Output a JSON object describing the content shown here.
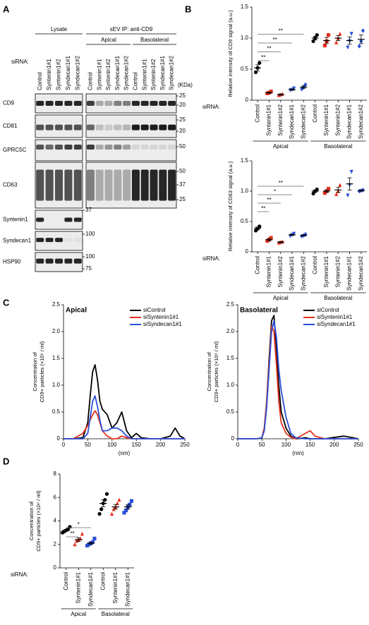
{
  "panel_labels": [
    "A",
    "B",
    "C",
    "D"
  ],
  "blot": {
    "header": {
      "lysate": "Lysate",
      "ip": "sEV IP: anti-CD9",
      "apical": "Apical",
      "basolateral": "Basolateral"
    },
    "sirna_label": "siRNA:",
    "unit": "(KDa)",
    "lanes": {
      "lysate": [
        "Control",
        "Syntenin1#1",
        "Syntenin1#2",
        "Syndecan1#1",
        "Syndecan1#2"
      ],
      "apical": [
        "Control",
        "Syntenin1#1",
        "Syntenin1#2",
        "Syndecan1#1",
        "Syndecan1#2"
      ],
      "basolateral": [
        "Control",
        "Syntenin1#1",
        "Syntenin1#2",
        "Syndecan1#1",
        "Syndecan1#2"
      ]
    },
    "rows": [
      {
        "label": "CD9",
        "markers": [
          25,
          20
        ]
      },
      {
        "label": "CD81",
        "markers": [
          25,
          20
        ]
      },
      {
        "label": "GPRC5C",
        "markers": [
          50
        ]
      },
      {
        "label": "CD63",
        "markers": [
          50,
          37,
          25
        ]
      },
      {
        "label": "Syntenin1",
        "markers": [
          37
        ]
      },
      {
        "label": "Syndecan1",
        "markers": [
          100
        ]
      },
      {
        "label": "HSP90",
        "markers": [
          100,
          75
        ]
      }
    ]
  },
  "chart_data": [
    {
      "type": "dot",
      "ylabel": "Relative intensity of CD9 signal (a.u.)",
      "row_label": "siRNA:",
      "ylim": [
        0,
        1.5
      ],
      "yticks": [
        0,
        0.5,
        {
          "value": 1,
          "label": "1.0"
        },
        1.5
      ],
      "sections": [
        {
          "name": "Apical",
          "groups": [
            {
              "name": "Control",
              "color": "#000000",
              "marker": "circle",
              "points": [
                0.45,
                0.52,
                0.6
              ],
              "mean": 0.52,
              "sem": 0.05
            },
            {
              "name": "Syntenin1#1",
              "color": "#e8301c",
              "marker": "square",
              "points": [
                0.11,
                0.12,
                0.14
              ],
              "mean": 0.12,
              "sem": 0.01,
              "sig": "**"
            },
            {
              "name": "Syntenin1#2",
              "color": "#e8301c",
              "marker": "triangle",
              "points": [
                0.08,
                0.09,
                0.1
              ],
              "mean": 0.09,
              "sem": 0.01,
              "sig": "**"
            },
            {
              "name": "Syndecan1#1",
              "color": "#2a4fd6",
              "marker": "tridown",
              "points": [
                0.16,
                0.17,
                0.19
              ],
              "mean": 0.17,
              "sem": 0.01,
              "sig": "**"
            },
            {
              "name": "Syndecan1#2",
              "color": "#2a4fd6",
              "marker": "diamond",
              "points": [
                0.18,
                0.21,
                0.25
              ],
              "mean": 0.21,
              "sem": 0.02,
              "sig": "**"
            }
          ]
        },
        {
          "name": "Basolateral",
          "groups": [
            {
              "name": "Control",
              "color": "#000000",
              "marker": "circle",
              "points": [
                0.95,
                1.0,
                1.05
              ],
              "mean": 1.0,
              "sem": 0.03
            },
            {
              "name": "Syntenin1#1",
              "color": "#e8301c",
              "marker": "square",
              "points": [
                0.88,
                0.95,
                1.05
              ],
              "mean": 0.96,
              "sem": 0.05
            },
            {
              "name": "Syntenin1#2",
              "color": "#e8301c",
              "marker": "triangle",
              "points": [
                0.93,
                1.0,
                1.07
              ],
              "mean": 1.0,
              "sem": 0.04
            },
            {
              "name": "Syndecan1#1",
              "color": "#2a4fd6",
              "marker": "tridown",
              "points": [
                0.85,
                0.95,
                1.07
              ],
              "mean": 0.96,
              "sem": 0.06
            },
            {
              "name": "Syndecan1#2",
              "color": "#2a4fd6",
              "marker": "diamond",
              "points": [
                0.87,
                0.95,
                1.12
              ],
              "mean": 0.98,
              "sem": 0.07
            }
          ]
        }
      ]
    },
    {
      "type": "dot",
      "ylabel": "Relative intensity of CD63 signal (a.u.)",
      "row_label": "siRNA:",
      "ylim": [
        0,
        1.5
      ],
      "yticks": [
        0,
        0.5,
        {
          "value": 1,
          "label": "1.0"
        },
        1.5
      ],
      "sections": [
        {
          "name": "Apical",
          "groups": [
            {
              "name": "Control",
              "color": "#000000",
              "marker": "circle",
              "points": [
                0.35,
                0.38,
                0.42
              ],
              "mean": 0.39,
              "sem": 0.02
            },
            {
              "name": "Syntenin1#1",
              "color": "#e8301c",
              "marker": "square",
              "points": [
                0.18,
                0.2,
                0.23
              ],
              "mean": 0.2,
              "sem": 0.02,
              "sig": "**"
            },
            {
              "name": "Syntenin1#2",
              "color": "#e8301c",
              "marker": "triangle",
              "points": [
                0.15,
                0.16,
                0.17
              ],
              "mean": 0.16,
              "sem": 0.01,
              "sig": "**"
            },
            {
              "name": "Syndecan1#1",
              "color": "#2a4fd6",
              "marker": "tridown",
              "points": [
                0.26,
                0.28,
                0.3
              ],
              "mean": 0.28,
              "sem": 0.01,
              "sig": "*"
            },
            {
              "name": "Syndecan1#2",
              "color": "#2a4fd6",
              "marker": "diamond",
              "points": [
                0.26,
                0.27,
                0.29
              ],
              "mean": 0.27,
              "sem": 0.01,
              "sig": "**"
            }
          ]
        },
        {
          "name": "Basolateral",
          "groups": [
            {
              "name": "Control",
              "color": "#000000",
              "marker": "circle",
              "points": [
                0.96,
                1.0,
                1.03
              ],
              "mean": 1.0,
              "sem": 0.02
            },
            {
              "name": "Syntenin1#1",
              "color": "#e8301c",
              "marker": "square",
              "points": [
                0.97,
                1.0,
                1.04
              ],
              "mean": 1.0,
              "sem": 0.02
            },
            {
              "name": "Syntenin1#2",
              "color": "#e8301c",
              "marker": "triangle",
              "points": [
                0.95,
                1.0,
                1.1
              ],
              "mean": 1.02,
              "sem": 0.04
            },
            {
              "name": "Syndecan1#1",
              "color": "#2a4fd6",
              "marker": "tridown",
              "points": [
                0.93,
                1.1,
                1.32
              ],
              "mean": 1.12,
              "sem": 0.1
            },
            {
              "name": "Syndecan1#2",
              "color": "#2a4fd6",
              "marker": "diamond",
              "points": [
                1.0,
                1.01,
                1.02
              ],
              "mean": 1.01,
              "sem": 0.01
            }
          ]
        }
      ]
    },
    {
      "type": "line",
      "title": "Apical",
      "xlabel": "(nm)",
      "ylabel": [
        "Concentration of",
        "CD9+ particles (×10⁸ / ml)"
      ],
      "legend": "upper right",
      "x": [
        0,
        20,
        40,
        50,
        55,
        60,
        65,
        70,
        75,
        80,
        90,
        100,
        110,
        120,
        130,
        140,
        150,
        160,
        180,
        200,
        220,
        230,
        240,
        250
      ],
      "xlim": [
        0,
        250
      ],
      "xticks": [
        0,
        50,
        100,
        150,
        200,
        250
      ],
      "ylim": [
        0,
        2.5
      ],
      "yticks": [
        0,
        0.5,
        {
          "value": 1,
          "label": "1.0"
        },
        1.5,
        {
          "value": 2,
          "label": "2.0"
        },
        2.5
      ],
      "series": [
        {
          "name": "siControl",
          "color": "#000000",
          "values": [
            0,
            0,
            0.02,
            0.3,
            0.8,
            1.25,
            1.38,
            1.1,
            0.7,
            0.55,
            0.45,
            0.2,
            0.3,
            0.5,
            0.15,
            0.02,
            0.1,
            0.02,
            0,
            0,
            0.05,
            0.2,
            0.05,
            0
          ]
        },
        {
          "name": "siSyntenin1#1",
          "color": "#e8301c",
          "values": [
            0,
            0,
            0.1,
            0.25,
            0.35,
            0.45,
            0.52,
            0.45,
            0.3,
            0.15,
            0.05,
            0,
            0,
            0.05,
            0.02,
            0,
            0,
            0,
            0,
            0,
            0,
            0,
            0,
            0
          ]
        },
        {
          "name": "siSyndecan1#1",
          "color": "#2a4fd6",
          "values": [
            0,
            0,
            0,
            0.1,
            0.4,
            0.7,
            0.8,
            0.6,
            0.35,
            0.15,
            0.15,
            0.2,
            0.2,
            0.15,
            0.05,
            0,
            0,
            0,
            0,
            0,
            0,
            0,
            0,
            0
          ]
        }
      ]
    },
    {
      "type": "line",
      "title": "Basolateral",
      "xlabel": "(nm)",
      "ylabel": [
        "Concentration of",
        "CD9+ particles (×10⁸ / ml)"
      ],
      "legend": "upper right",
      "x": [
        0,
        20,
        40,
        50,
        55,
        60,
        65,
        70,
        75,
        80,
        85,
        90,
        100,
        110,
        120,
        140,
        150,
        160,
        180,
        220,
        250
      ],
      "xlim": [
        0,
        250
      ],
      "xticks": [
        0,
        50,
        100,
        150,
        200,
        250
      ],
      "ylim": [
        0,
        2.5
      ],
      "yticks": [
        0,
        0.5,
        {
          "value": 1,
          "label": "1.0"
        },
        1.5,
        {
          "value": 2,
          "label": "2.0"
        },
        2.5
      ],
      "series": [
        {
          "name": "siControl",
          "color": "#000000",
          "values": [
            0,
            0,
            0,
            0.02,
            0.2,
            0.7,
            1.5,
            2.2,
            2.3,
            1.7,
            1.0,
            0.5,
            0.2,
            0.05,
            0,
            0.02,
            0,
            0,
            0,
            0.05,
            0
          ]
        },
        {
          "name": "siSyntenin1#1",
          "color": "#e8301c",
          "values": [
            0,
            0,
            0,
            0.02,
            0.2,
            0.7,
            1.4,
            2.1,
            2.0,
            1.4,
            0.7,
            0.3,
            0.1,
            0.03,
            0,
            0.1,
            0.15,
            0.05,
            0,
            0,
            0
          ]
        },
        {
          "name": "siSyndecan1#1",
          "color": "#2a4fd6",
          "values": [
            0,
            0,
            0,
            0.02,
            0.15,
            0.6,
            1.3,
            2.0,
            2.2,
            1.9,
            1.3,
            0.9,
            0.4,
            0.1,
            0.02,
            0,
            0,
            0,
            0,
            0,
            0
          ]
        }
      ]
    },
    {
      "type": "dot",
      "ylabel": [
        "Concentration of",
        "CD9+ particles (×10⁸ / ml)"
      ],
      "row_label": "siRNA:",
      "ylim": [
        0,
        8
      ],
      "yticks": [
        0,
        2,
        4,
        6,
        8
      ],
      "sections": [
        {
          "name": "Apical",
          "groups": [
            {
              "name": "Control",
              "color": "#000000",
              "marker": "circle",
              "points": [
                3.0,
                3.1,
                3.2,
                3.3,
                3.5
              ],
              "mean": 3.2,
              "sem": 0.08
            },
            {
              "name": "Syntenin1#1",
              "color": "#e8301c",
              "marker": "triangle",
              "points": [
                2.0,
                2.3,
                2.4,
                2.5,
                2.9
              ],
              "mean": 2.4,
              "sem": 0.15,
              "sig": "**"
            },
            {
              "name": "Syndecan1#1",
              "color": "#2a4fd6",
              "marker": "square",
              "points": [
                1.9,
                2.0,
                2.1,
                2.2,
                2.5
              ],
              "mean": 2.1,
              "sem": 0.1,
              "sig": "*"
            }
          ]
        },
        {
          "name": "Basolateral",
          "groups": [
            {
              "name": "Control",
              "color": "#000000",
              "marker": "circle",
              "points": [
                4.6,
                5.0,
                5.5,
                5.8,
                6.3
              ],
              "mean": 5.5,
              "sem": 0.3
            },
            {
              "name": "Syntenin1#1",
              "color": "#e8301c",
              "marker": "triangle",
              "points": [
                4.6,
                5.0,
                5.2,
                5.5,
                5.8
              ],
              "mean": 5.2,
              "sem": 0.2
            },
            {
              "name": "Syndecan1#1",
              "color": "#2a4fd6",
              "marker": "square",
              "points": [
                4.7,
                4.9,
                5.2,
                5.4,
                5.7
              ],
              "mean": 5.2,
              "sem": 0.2
            }
          ]
        }
      ]
    }
  ]
}
